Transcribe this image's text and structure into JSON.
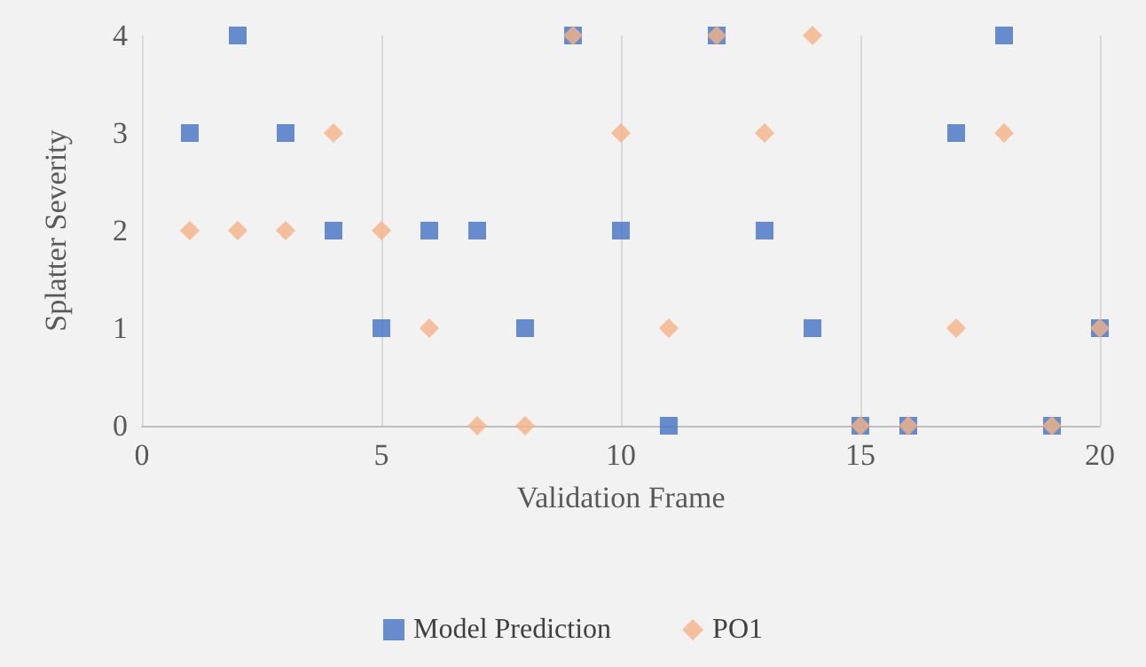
{
  "chart_data": {
    "type": "scatter",
    "xlabel": "Validation Frame",
    "ylabel": "Splatter Severity",
    "x": [
      1,
      2,
      3,
      4,
      5,
      6,
      7,
      8,
      9,
      10,
      11,
      12,
      13,
      14,
      15,
      16,
      17,
      18,
      19,
      20
    ],
    "series": [
      {
        "name": "Model Prediction",
        "color": "#4472c4",
        "marker": "square",
        "values": [
          3,
          4,
          3,
          2,
          1,
          2,
          2,
          1,
          4,
          2,
          0,
          4,
          2,
          1,
          0,
          0,
          3,
          4,
          0,
          1
        ]
      },
      {
        "name": "PO1",
        "color": "#f4b183",
        "marker": "diamond",
        "values": [
          2,
          2,
          2,
          3,
          2,
          1,
          0,
          0,
          4,
          3,
          1,
          4,
          3,
          4,
          0,
          0,
          1,
          3,
          0,
          1
        ]
      }
    ],
    "xlim": [
      0,
      20
    ],
    "xticks": [
      0,
      5,
      10,
      15,
      20
    ],
    "ylim": [
      0,
      4
    ],
    "yticks": [
      0,
      1,
      2,
      3,
      4
    ],
    "grid": "x",
    "legend": "bottom"
  }
}
